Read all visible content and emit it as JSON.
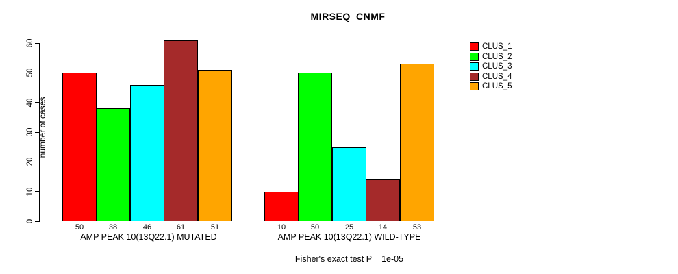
{
  "chart_data": {
    "type": "bar",
    "title": "MIRSEQ_CNMF",
    "ylabel": "number of cases",
    "xlabel": "",
    "ylim": [
      0,
      60
    ],
    "yticks": [
      0,
      10,
      20,
      30,
      40,
      50,
      60
    ],
    "grid": false,
    "legend_position": "right",
    "series_names": [
      "CLUS_1",
      "CLUS_2",
      "CLUS_3",
      "CLUS_4",
      "CLUS_5"
    ],
    "colors": [
      "#ff0000",
      "#00ff00",
      "#00ffff",
      "#a52a2a",
      "#ffa500"
    ],
    "groups": [
      {
        "label": "AMP PEAK 10(13Q22.1) MUTATED",
        "values": [
          50,
          38,
          46,
          61,
          51
        ]
      },
      {
        "label": "AMP PEAK 10(13Q22.1) WILD-TYPE",
        "values": [
          10,
          50,
          25,
          14,
          53
        ]
      }
    ],
    "bar_value_labels_shown": true,
    "footnote": "Fisher's exact test P = 1e-05"
  }
}
